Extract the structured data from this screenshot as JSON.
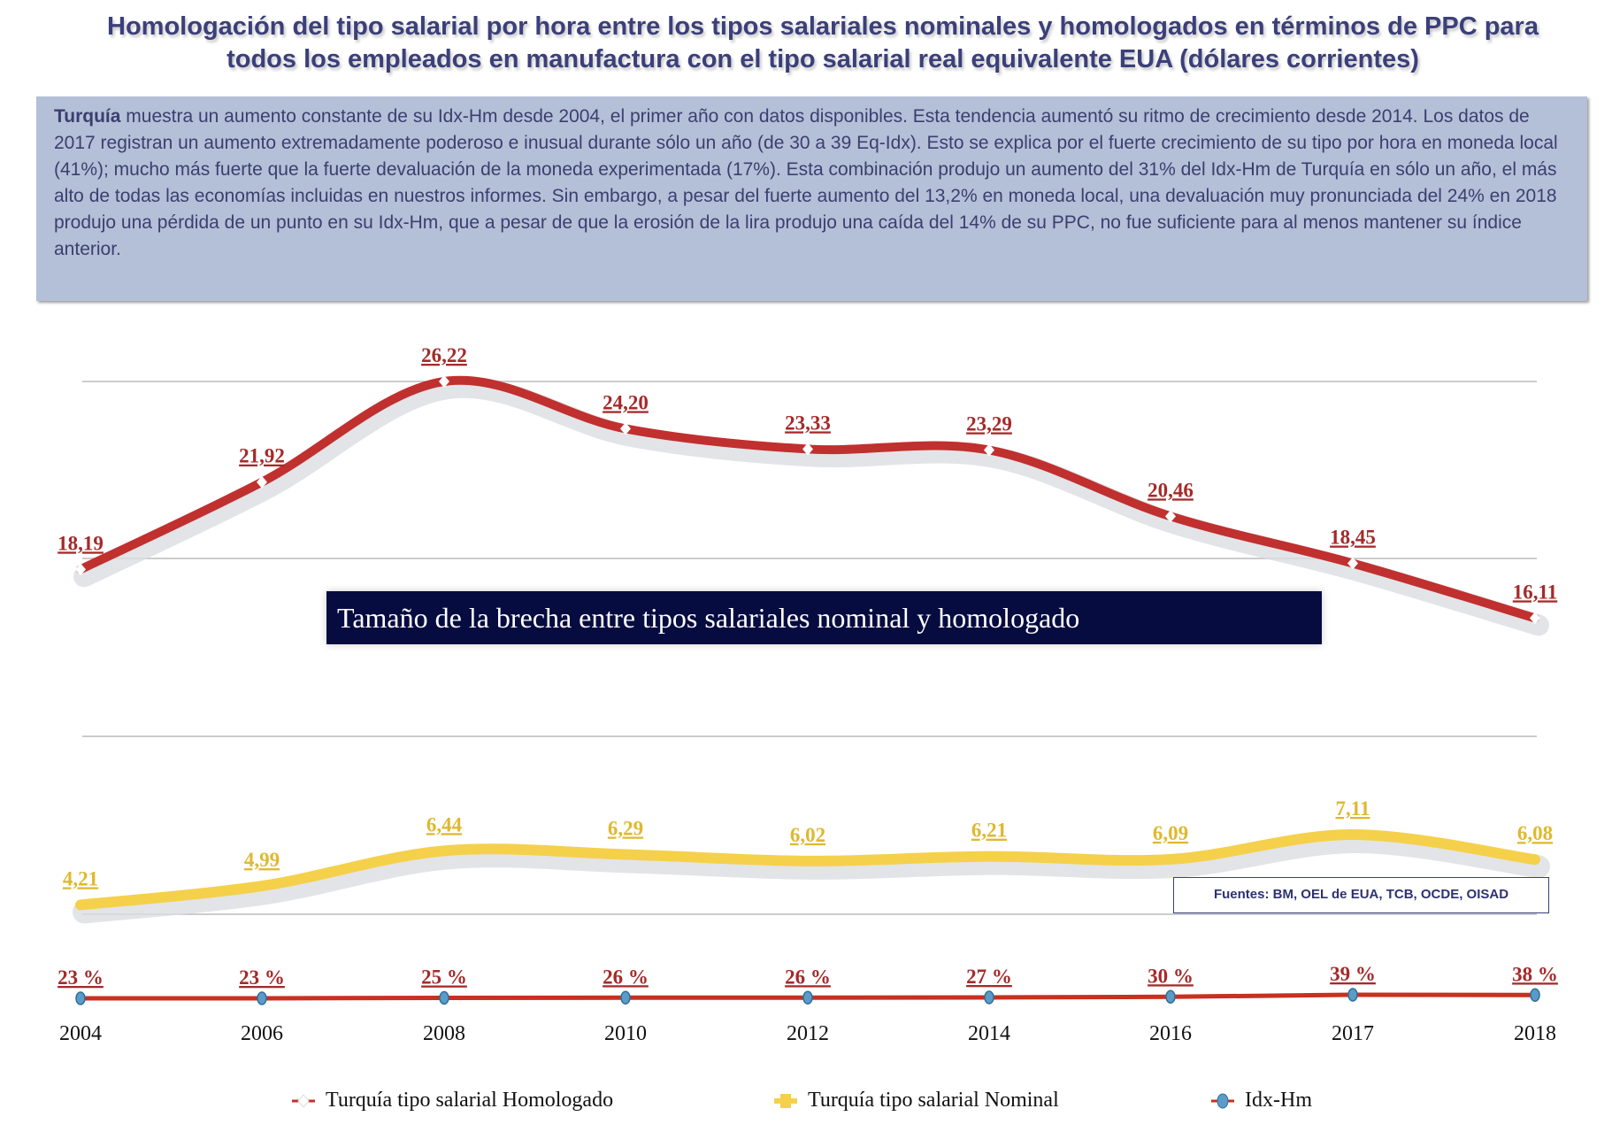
{
  "title": "Homologación del tipo salarial por hora entre los tipos salariales nominales y homologados en términos de PPC para todos los empleados en manufactura con el tipo salarial real equivalente EUA (dólares corrientes)",
  "description": {
    "lead": "Turquía",
    "text": " muestra un aumento constante de su Idx-Hm desde 2004, el primer año con datos disponibles. Esta tendencia aumentó su ritmo de crecimiento desde 2014. Los datos de 2017 registran un aumento extremadamente poderoso e inusual durante sólo un año (de 30 a 39 Eq-Idx). Esto se explica por el fuerte crecimiento de su tipo por hora en moneda local (41%); mucho más fuerte que la fuerte devaluación de la moneda experimentada (17%). Esta combinación produjo un aumento del 31% del Idx-Hm de Turquía en sólo un año, el más alto de todas las economías incluidas en nuestros informes. Sin embargo, a pesar del fuerte aumento del 13,2% en moneda local, una devaluación muy pronunciada del 24% en 2018 produjo una pérdida de un punto en su Idx-Hm, que a pesar de que la erosión de la lira produjo una caída del 14% de su PPC, no fue suficiente para al menos mantener su índice anterior."
  },
  "gap_banner": "Tamaño de la brecha entre tipos salariales nominal y homologado",
  "sources": "Fuentes: BM, OEL de EUA, TCB, OCDE, OISAD",
  "chart_data": {
    "type": "line",
    "categories": [
      "2004",
      "2006",
      "2008",
      "2010",
      "2012",
      "2014",
      "2016",
      "2017",
      "2018"
    ],
    "series": [
      {
        "name": "Turquía tipo salarial Homologado",
        "color": "#c0302f",
        "values": [
          18.19,
          21.92,
          26.22,
          24.2,
          23.33,
          23.29,
          20.46,
          18.45,
          16.11
        ],
        "labels": [
          "18,19",
          "21,92",
          "26,22",
          "24,20",
          "23,33",
          "23,29",
          "20,46",
          "18,45",
          "16,11"
        ]
      },
      {
        "name": "Turquía tipo salarial Nominal",
        "color": "#f5d04a",
        "values": [
          4.21,
          4.99,
          6.44,
          6.29,
          6.02,
          6.21,
          6.09,
          7.11,
          6.08
        ],
        "labels": [
          "4,21",
          "4,99",
          "6,44",
          "6,29",
          "6,02",
          "6,21",
          "6,09",
          "7,11",
          "6,08"
        ]
      },
      {
        "name": "Idx-Hm",
        "color": "#c8301f",
        "marker_color": "#5b9bc8",
        "values": [
          23,
          23,
          25,
          26,
          26,
          27,
          30,
          39,
          38
        ],
        "labels": [
          "23 %",
          "23 %",
          "25 %",
          "26 %",
          "26 %",
          "27 %",
          "30 %",
          "39 %",
          "38 %"
        ]
      }
    ],
    "label_colors": {
      "homologado": "#a52a2a",
      "nominal": "#e0b830",
      "idx": "#a52a2a"
    },
    "grid": true,
    "legend": "bottom"
  }
}
